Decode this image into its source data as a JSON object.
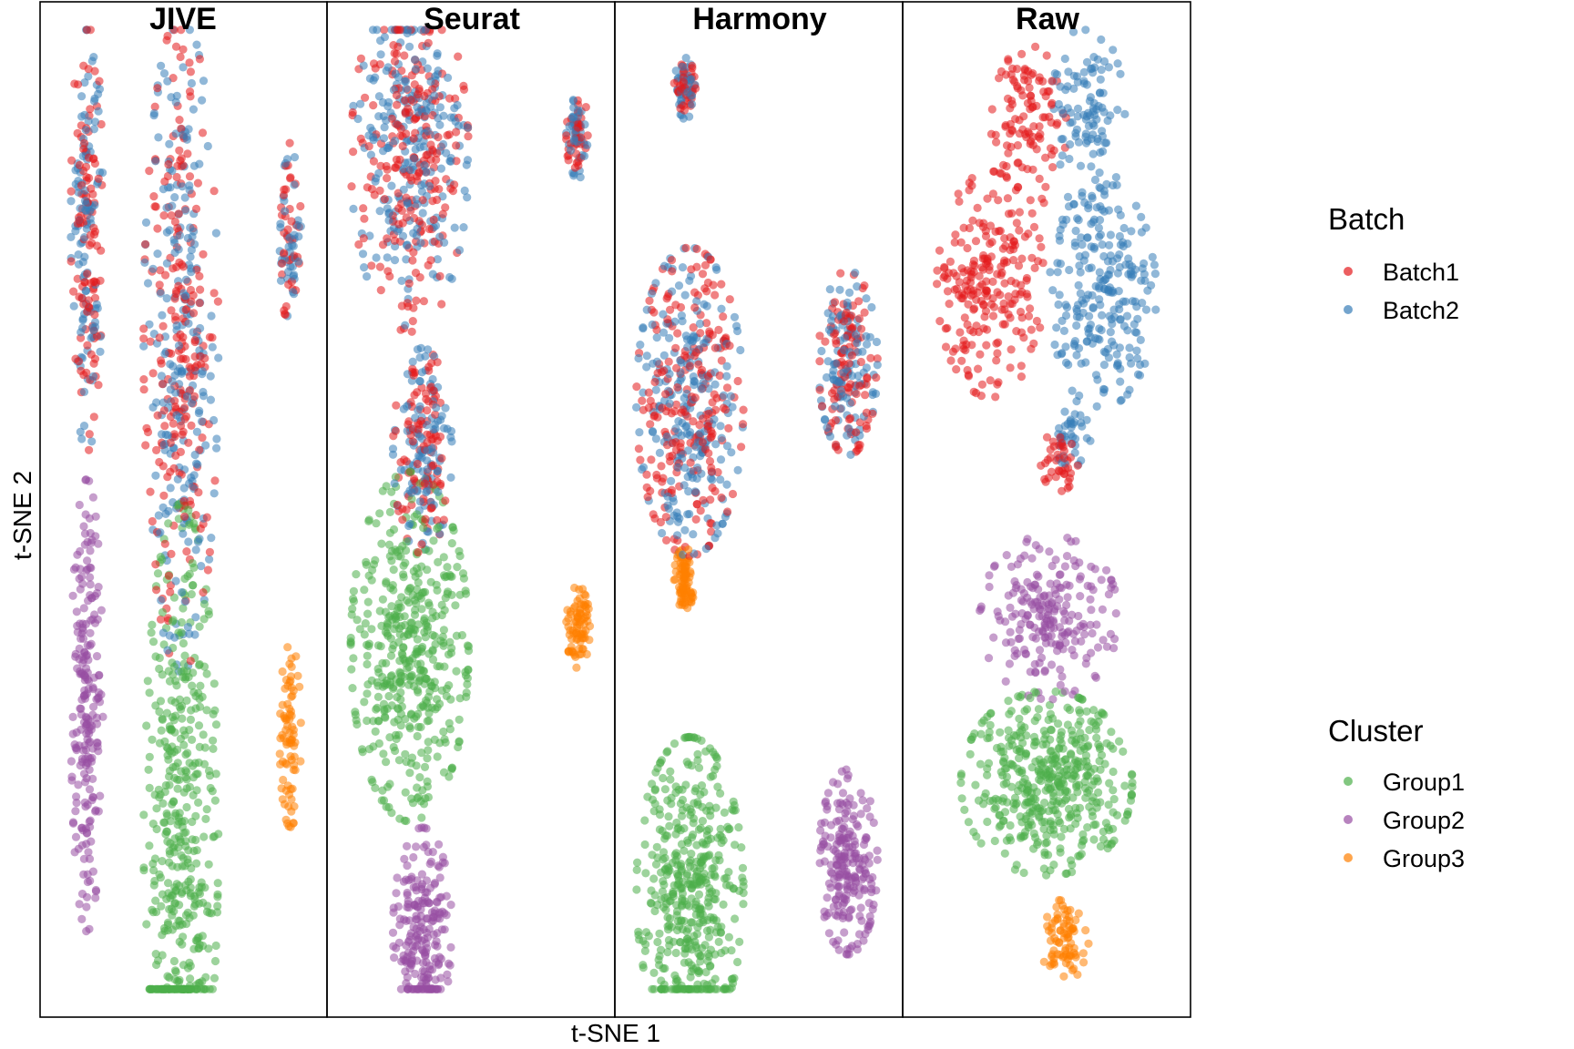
{
  "chart_data": {
    "type": "scatter",
    "panels": [
      "JIVE",
      "Seurat",
      "Harmony",
      "Raw"
    ],
    "xlabel": "t-SNE 1",
    "ylabel": "t-SNE 2",
    "legends": [
      {
        "title": "Batch",
        "entries": [
          {
            "name": "Batch1",
            "color": "#E41A1C"
          },
          {
            "name": "Batch2",
            "color": "#377EB8"
          }
        ]
      },
      {
        "title": "Cluster",
        "entries": [
          {
            "name": "Group1",
            "color": "#4DAF4A"
          },
          {
            "name": "Group2",
            "color": "#984EA3"
          },
          {
            "name": "Group3",
            "color": "#FF7F00"
          }
        ]
      }
    ],
    "grid": false,
    "point_alpha": 0.55,
    "clusters": [
      {
        "panel": "JIVE",
        "color_by": "batch",
        "cx": 0.12,
        "cy": 0.79,
        "sx": 0.03,
        "sy": 0.11,
        "n": {
          "Batch1": 110,
          "Batch2": 110
        }
      },
      {
        "panel": "JIVE",
        "color_by": "batch",
        "cx": 0.49,
        "cy": 0.67,
        "sx": 0.07,
        "sy": 0.16,
        "n": {
          "Batch1": 230,
          "Batch2": 230
        }
      },
      {
        "panel": "JIVE",
        "color_by": "batch",
        "cx": 0.92,
        "cy": 0.78,
        "sx": 0.02,
        "sy": 0.045,
        "n": {
          "Batch1": 40,
          "Batch2": 40
        }
      },
      {
        "panel": "JIVE",
        "color_by": "cluster",
        "group": "Group2",
        "cx": 0.12,
        "cy": 0.3,
        "sx": 0.03,
        "sy": 0.11,
        "n": 220
      },
      {
        "panel": "JIVE",
        "color_by": "cluster",
        "group": "Group1",
        "cx": 0.49,
        "cy": 0.17,
        "sx": 0.07,
        "sy": 0.16,
        "n": 460
      },
      {
        "panel": "JIVE",
        "color_by": "cluster",
        "group": "Group3",
        "cx": 0.92,
        "cy": 0.27,
        "sx": 0.02,
        "sy": 0.045,
        "n": 80
      },
      {
        "panel": "Seurat",
        "color_by": "batch",
        "cx": 0.26,
        "cy": 0.86,
        "sx": 0.11,
        "sy": 0.085,
        "n": {
          "Batch1": 230,
          "Batch2": 230
        }
      },
      {
        "panel": "Seurat",
        "color_by": "batch",
        "cx": 0.31,
        "cy": 0.56,
        "sx": 0.055,
        "sy": 0.05,
        "n": {
          "Batch1": 110,
          "Batch2": 110
        }
      },
      {
        "panel": "Seurat",
        "color_by": "batch",
        "cx": 0.92,
        "cy": 0.88,
        "sx": 0.022,
        "sy": 0.02,
        "n": {
          "Batch1": 40,
          "Batch2": 40
        }
      },
      {
        "panel": "Seurat",
        "color_by": "cluster",
        "group": "Group1",
        "cx": 0.26,
        "cy": 0.36,
        "sx": 0.11,
        "sy": 0.085,
        "n": 460
      },
      {
        "panel": "Seurat",
        "color_by": "cluster",
        "group": "Group2",
        "cx": 0.31,
        "cy": 0.07,
        "sx": 0.055,
        "sy": 0.05,
        "n": 220
      },
      {
        "panel": "Seurat",
        "color_by": "cluster",
        "group": "Group3",
        "cx": 0.92,
        "cy": 0.38,
        "sx": 0.022,
        "sy": 0.02,
        "n": 80
      },
      {
        "panel": "Harmony",
        "color_by": "batch",
        "cx": 0.21,
        "cy": 0.93,
        "sx": 0.02,
        "sy": 0.015,
        "n": {
          "Batch1": 40,
          "Batch2": 40
        }
      },
      {
        "panel": "Harmony",
        "color_by": "batch",
        "cx": 0.23,
        "cy": 0.61,
        "sx": 0.1,
        "sy": 0.075,
        "n": {
          "Batch1": 230,
          "Batch2": 230
        }
      },
      {
        "panel": "Harmony",
        "color_by": "batch",
        "cx": 0.85,
        "cy": 0.65,
        "sx": 0.055,
        "sy": 0.045,
        "n": {
          "Batch1": 110,
          "Batch2": 110
        }
      },
      {
        "panel": "Harmony",
        "color_by": "cluster",
        "group": "Group3",
        "cx": 0.21,
        "cy": 0.43,
        "sx": 0.02,
        "sy": 0.015,
        "n": 80
      },
      {
        "panel": "Harmony",
        "color_by": "cluster",
        "group": "Group1",
        "cx": 0.23,
        "cy": 0.11,
        "sx": 0.1,
        "sy": 0.075,
        "n": 460
      },
      {
        "panel": "Harmony",
        "color_by": "cluster",
        "group": "Group2",
        "cx": 0.85,
        "cy": 0.14,
        "sx": 0.055,
        "sy": 0.045,
        "n": 220
      },
      {
        "panel": "Raw",
        "color_by": "batch",
        "batch": "Batch1",
        "cx": 0.43,
        "cy": 0.89,
        "sx": 0.07,
        "sy": 0.04,
        "n": 110
      },
      {
        "panel": "Raw",
        "color_by": "batch",
        "batch": "Batch2",
        "cx": 0.66,
        "cy": 0.9,
        "sx": 0.07,
        "sy": 0.045,
        "n": 110
      },
      {
        "panel": "Raw",
        "color_by": "batch",
        "batch": "Batch1",
        "cx": 0.28,
        "cy": 0.73,
        "sx": 0.1,
        "sy": 0.055,
        "n": 230
      },
      {
        "panel": "Raw",
        "color_by": "batch",
        "batch": "Batch2",
        "cx": 0.72,
        "cy": 0.72,
        "sx": 0.1,
        "sy": 0.055,
        "n": 230
      },
      {
        "panel": "Raw",
        "color_by": "batch",
        "batch": "Batch1",
        "cx": 0.55,
        "cy": 0.55,
        "sx": 0.035,
        "sy": 0.015,
        "n": 40
      },
      {
        "panel": "Raw",
        "color_by": "batch",
        "batch": "Batch2",
        "cx": 0.6,
        "cy": 0.58,
        "sx": 0.035,
        "sy": 0.02,
        "n": 40
      },
      {
        "panel": "Raw",
        "color_by": "cluster",
        "group": "Group2",
        "cx": 0.51,
        "cy": 0.39,
        "sx": 0.13,
        "sy": 0.04,
        "n": 220
      },
      {
        "panel": "Raw",
        "color_by": "cluster",
        "group": "Group1",
        "cx": 0.5,
        "cy": 0.22,
        "sx": 0.16,
        "sy": 0.045,
        "n": 460
      },
      {
        "panel": "Raw",
        "color_by": "cluster",
        "group": "Group3",
        "cx": 0.57,
        "cy": 0.06,
        "sx": 0.045,
        "sy": 0.02,
        "n": 80
      }
    ]
  }
}
